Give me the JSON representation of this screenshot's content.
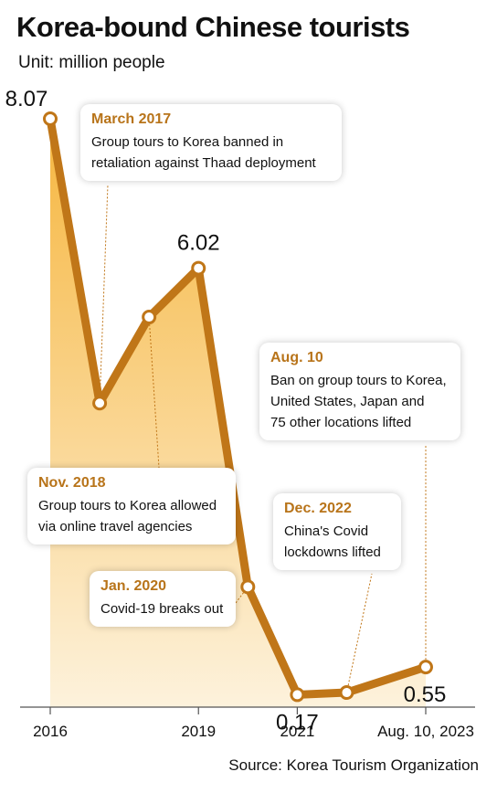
{
  "title": "Korea-bound Chinese tourists",
  "subtitle": "Unit: million people",
  "source": "Source: Korea Tourism Organization",
  "colors": {
    "line": "#c07618",
    "area_top": "#f6b63f",
    "area_bottom": "#fdf2dc",
    "callout_head": "#b8741a"
  },
  "callouts": {
    "mar2017": {
      "head": "March 2017",
      "body": "Group tours to Korea banned in\nretaliation against Thaad deployment"
    },
    "nov2018": {
      "head": "Nov. 2018",
      "body": "Group tours to Korea allowed\nvia online travel agencies"
    },
    "jan2020": {
      "head": "Jan. 2020",
      "body": "Covid-19 breaks out"
    },
    "dec2022": {
      "head": "Dec. 2022",
      "body": "China's Covid\nlockdowns lifted"
    },
    "aug10": {
      "head": "Aug. 10",
      "body": "Ban on group tours to Korea,\nUnited States, Japan and\n75 other locations lifted"
    }
  },
  "chart_data": {
    "type": "area",
    "title": "Korea-bound Chinese tourists",
    "ylabel": "Unit: million people",
    "x_ticks": [
      "2016",
      "2019",
      "2021",
      "Aug. 10, 2023"
    ],
    "x": [
      2016.0,
      2017.0,
      2018.0,
      2019.0,
      2020.0,
      2021.0,
      2022.0,
      2023.6
    ],
    "values": [
      8.07,
      4.17,
      5.35,
      6.02,
      1.65,
      0.17,
      0.2,
      0.55
    ],
    "data_labels": [
      "8.07",
      "",
      "",
      "6.02",
      "",
      "0.17",
      "",
      "0.55"
    ],
    "ylim": [
      0,
      8.5
    ],
    "grid": false
  }
}
